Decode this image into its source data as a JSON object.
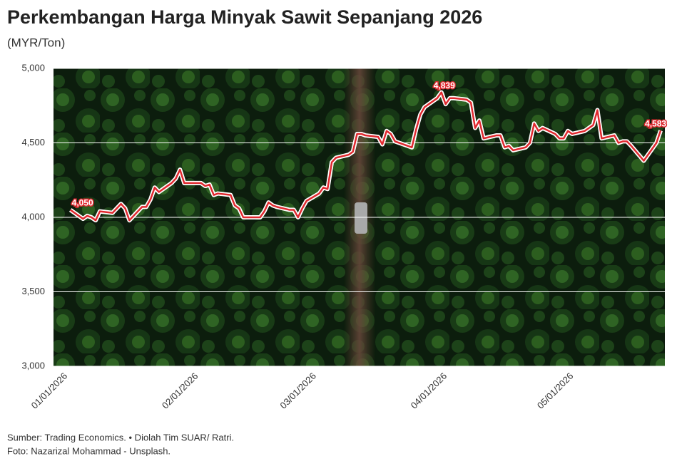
{
  "chart_data": {
    "type": "line",
    "title": "Perkembangan Harga Minyak Sawit Sepanjang 2026",
    "subtitle": "(MYR/Ton)",
    "notes": [
      "Sumber: Trading Economics. • Diolah Tim SUAR/ Ratri.",
      "Foto: Nazarizal Mohammad - Unsplash."
    ],
    "x": [
      "01/02/2026",
      "01/05/2026",
      "01/06/2026",
      "01/07/2026",
      "01/08/2026",
      "01/09/2026",
      "01/12/2026",
      "01/13/2026",
      "01/14/2026",
      "01/15/2026",
      "01/16/2026",
      "01/19/2026",
      "01/20/2026",
      "01/21/2026",
      "01/22/2026",
      "01/23/2026",
      "01/26/2026",
      "01/27/2026",
      "01/28/2026",
      "01/29/2026",
      "01/30/2026",
      "02/02/2026",
      "02/03/2026",
      "02/04/2026",
      "02/05/2026",
      "02/06/2026",
      "02/09/2026",
      "02/10/2026",
      "02/11/2026",
      "02/12/2026",
      "02/13/2026",
      "02/16/2026",
      "02/17/2026",
      "02/18/2026",
      "02/19/2026",
      "02/20/2026",
      "02/23/2026",
      "02/24/2026",
      "02/25/2026",
      "02/26/2026",
      "02/27/2026",
      "03/02/2026",
      "03/03/2026",
      "03/04/2026",
      "03/05/2026",
      "03/06/2026",
      "03/09/2026",
      "03/10/2026",
      "03/11/2026",
      "03/12/2026",
      "03/13/2026",
      "03/16/2026",
      "03/17/2026",
      "03/18/2026",
      "03/19/2026",
      "03/20/2026",
      "03/23/2026",
      "03/24/2026",
      "03/25/2026",
      "03/26/2026",
      "03/27/2026",
      "03/30/2026",
      "03/31/2026",
      "04/01/2026",
      "04/02/2026",
      "04/03/2026",
      "04/06/2026",
      "04/07/2026",
      "04/08/2026",
      "04/09/2026",
      "04/10/2026",
      "04/13/2026",
      "04/14/2026",
      "04/15/2026",
      "04/16/2026",
      "04/17/2026",
      "04/20/2026",
      "04/21/2026",
      "04/22/2026",
      "04/23/2026",
      "04/24/2026",
      "04/27/2026",
      "04/28/2026",
      "04/29/2026",
      "04/30/2026",
      "05/01/2026",
      "05/04/2026",
      "05/05/2026",
      "05/06/2026",
      "05/07/2026",
      "05/08/2026",
      "05/11/2026",
      "05/12/2026",
      "05/13/2026",
      "05/14/2026",
      "05/15/2026",
      "05/18/2026",
      "05/19/2026",
      "05/20/2026",
      "05/21/2026",
      "05/22/2026"
    ],
    "series": [
      {
        "name": "Harga",
        "color": "#e0282e",
        "values": [
          4050,
          3990,
          4010,
          4000,
          3980,
          4040,
          4030,
          4060,
          4090,
          4060,
          3980,
          4070,
          4070,
          4120,
          4200,
          4170,
          4230,
          4260,
          4320,
          4230,
          4230,
          4230,
          4210,
          4220,
          4150,
          4160,
          4150,
          4080,
          4060,
          4000,
          4000,
          4000,
          4040,
          4100,
          4080,
          4070,
          4050,
          4050,
          4000,
          4060,
          4110,
          4160,
          4200,
          4190,
          4370,
          4400,
          4420,
          4440,
          4560,
          4560,
          4550,
          4540,
          4490,
          4580,
          4560,
          4510,
          4480,
          4470,
          4590,
          4690,
          4740,
          4800,
          4839,
          4760,
          4800,
          4800,
          4790,
          4770,
          4600,
          4650,
          4530,
          4550,
          4550,
          4470,
          4480,
          4450,
          4470,
          4500,
          4630,
          4580,
          4600,
          4560,
          4530,
          4530,
          4580,
          4560,
          4580,
          4600,
          4620,
          4720,
          4530,
          4550,
          4500,
          4510,
          4510,
          4480,
          4380,
          4420,
          4460,
          4500,
          4583
        ],
        "value_labels": [
          "4,050",
          null,
          null,
          null,
          null,
          null,
          null,
          null,
          null,
          null,
          null,
          null,
          null,
          null,
          null,
          null,
          null,
          null,
          null,
          null,
          null,
          null,
          null,
          null,
          null,
          null,
          null,
          null,
          null,
          null,
          null,
          null,
          null,
          null,
          null,
          null,
          null,
          null,
          null,
          null,
          null,
          null,
          null,
          null,
          null,
          null,
          null,
          null,
          null,
          null,
          null,
          null,
          null,
          null,
          null,
          null,
          null,
          null,
          null,
          null,
          null,
          null,
          "4,839",
          null,
          null,
          null,
          null,
          null,
          null,
          null,
          null,
          null,
          null,
          null,
          null,
          null,
          null,
          null,
          null,
          null,
          null,
          null,
          null,
          null,
          null,
          null,
          null,
          null,
          null,
          null,
          null,
          null,
          null,
          null,
          null,
          null,
          null,
          null,
          null,
          null,
          "4,583"
        ]
      }
    ],
    "xlim": [
      "12/29/2025",
      "05/23/2026"
    ],
    "xticks": [
      "01/01/2026",
      "02/01/2026",
      "03/01/2026",
      "04/01/2026",
      "05/01/2026"
    ],
    "ylim": [
      3000,
      5000
    ],
    "yticks": [
      {
        "value": 3000,
        "label": "3,000"
      },
      {
        "value": 3500,
        "label": "3,500"
      },
      {
        "value": 4000,
        "label": "4,000"
      },
      {
        "value": 4500,
        "label": "4,500"
      },
      {
        "value": 5000,
        "label": "5,000"
      }
    ],
    "grid": true
  }
}
